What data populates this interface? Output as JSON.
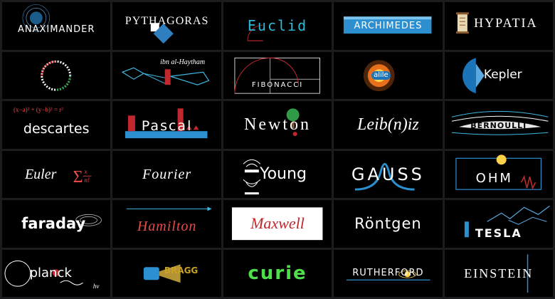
{
  "logos": {
    "anaximander": "ANAXIMANDER",
    "pythagoras": "PYTHAGORAS",
    "euclid": "Euclid",
    "archimedes": "ARCHIMEDES",
    "hypatia": "HYPATIA",
    "al_haytham": "ibn al-Haytham",
    "fibonacci": "FIBONACCI",
    "galileo": "alile",
    "kepler": "Kepler",
    "descartes": "descartes",
    "descartes_formula": "(x−a)² + (y−b)² = r²",
    "pascal": "Pascal",
    "newton": "Newton",
    "leibniz": "Leib(n)iz",
    "bernoulli": "BERNOULLI",
    "euler": "Euler",
    "fourier": "Fourier",
    "young": "Young",
    "gauss": "GAUSS",
    "ohm": "OHM",
    "faraday": "faraday",
    "hamilton": "Hamilton",
    "maxwell": "Maxwell",
    "rontgen": "Röntgen",
    "tesla": "TESLA",
    "planck": "planck",
    "planck_formula": "hv",
    "bragg": "BRAGG",
    "curie": "curie",
    "rutherford": "RUTHERFORD",
    "einstein": "EINSTEIN"
  }
}
